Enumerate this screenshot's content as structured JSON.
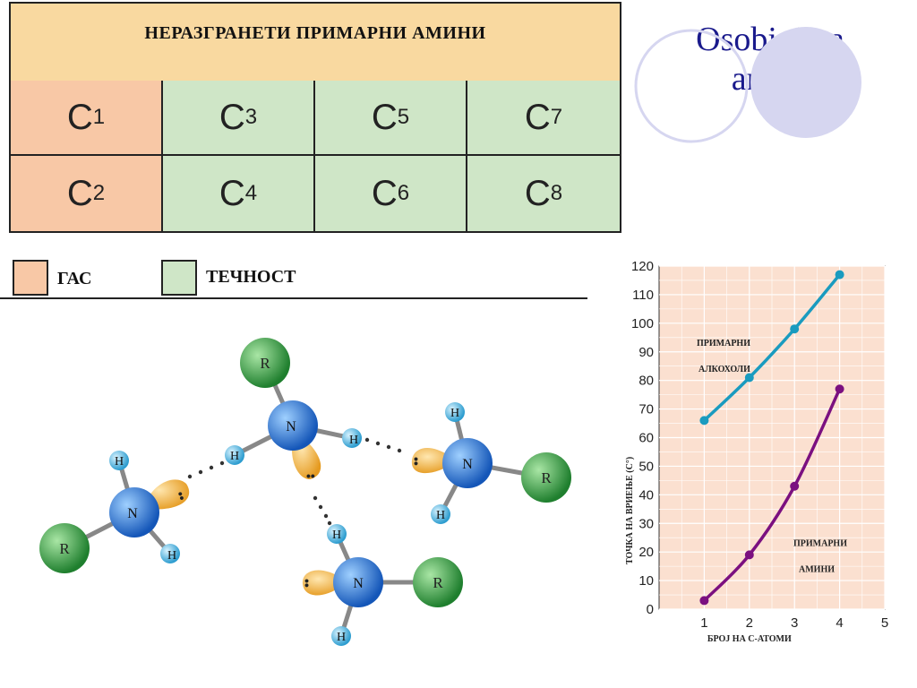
{
  "slide": {
    "title_line1": "Osobini na",
    "title_line2": "amini"
  },
  "table": {
    "header": "НЕРАЗГРАНЕТИ ПРИМАРНИ АМИНИ",
    "rows": [
      [
        {
          "base": "C",
          "sub": "1",
          "state": "gas"
        },
        {
          "base": "C",
          "sub": "3",
          "state": "liquid"
        },
        {
          "base": "C",
          "sub": "5",
          "state": "liquid"
        },
        {
          "base": "C",
          "sub": "7",
          "state": "liquid"
        }
      ],
      [
        {
          "base": "C",
          "sub": "2",
          "state": "gas"
        },
        {
          "base": "C",
          "sub": "4",
          "state": "liquid"
        },
        {
          "base": "C",
          "sub": "6",
          "state": "liquid"
        },
        {
          "base": "C",
          "sub": "8",
          "state": "liquid"
        }
      ]
    ]
  },
  "legend": {
    "gas_label": "ГАС",
    "liquid_label": "ТЕЧНОСТ",
    "gas_color": "#f8c8a6",
    "liquid_color": "#cfe6c7"
  },
  "molecules": {
    "n_label": "N",
    "h_label": "H",
    "r_label": "R",
    "lone_pair": "••",
    "colors": {
      "n": "#1f6fd1",
      "h": "#4fb6e0",
      "r": "#2f9e3f",
      "lone_pair": "#f2b33d"
    }
  },
  "chart_data": {
    "type": "line",
    "xlabel": "БРОЈ НА С-АТОМИ",
    "ylabel": "ТОЧКА НА ВРИЕЊЕ (С°)",
    "xlim": [
      0,
      5
    ],
    "ylim": [
      0,
      120
    ],
    "x_ticks": [
      1,
      2,
      3,
      4,
      5
    ],
    "y_ticks": [
      0,
      10,
      20,
      30,
      40,
      50,
      60,
      70,
      80,
      90,
      100,
      110,
      120
    ],
    "grid": true,
    "background": "#fbe0d0",
    "series": [
      {
        "name_line1": "ПРИМАРНИ",
        "name_line2": "АЛКОХОЛИ",
        "color": "#1a9bbf",
        "x": [
          1,
          2,
          3,
          4
        ],
        "y": [
          66,
          81,
          98,
          117
        ]
      },
      {
        "name_line1": "ПРИМАРНИ",
        "name_line2": "АМИНИ",
        "color": "#7b1080",
        "x": [
          1,
          2,
          3,
          4
        ],
        "y": [
          3,
          19,
          43,
          77
        ]
      }
    ]
  }
}
